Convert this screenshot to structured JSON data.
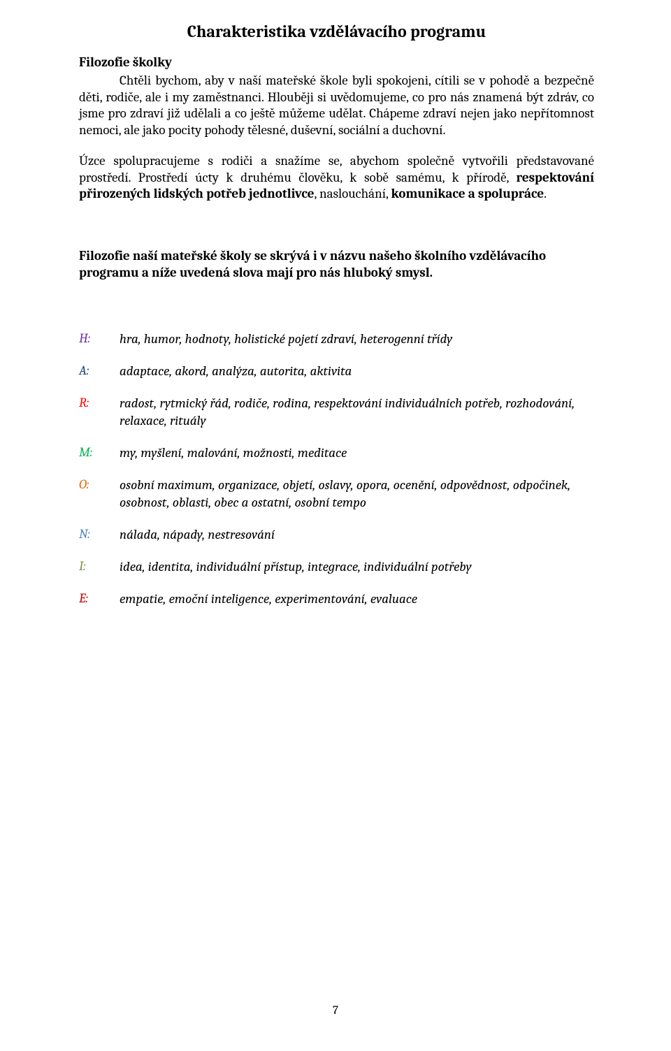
{
  "title": "Charakteristika vzdělávacího programu",
  "subhead": "Filozofie školky",
  "para1_a": "Chtěli bychom, aby v naší mateřské škole byli spokojeni, cítili se v pohodě a bezpečně děti, rodiče, ale i my zaměstnanci. Hlouběji si uvědomujeme, co pro nás znamená být zdráv, co jsme pro zdraví již udělali a co ještě můžeme udělat. Chápeme zdraví nejen jako nepřítomnost nemoci, ale jako pocity pohody tělesné, duševní, sociální a duchovní.",
  "para2_a": "Úzce spolupracujeme s rodiči a snažíme se, abychom společně vytvořili představované prostředí. Prostředí úcty k druhému člověku, k sobě samému, k přírodě, ",
  "para2_b": "respektování přirozených lidských potřeb jednotlivce",
  "para2_c": ", naslouchání, ",
  "para2_d": "komunikace a spolupráce",
  "para2_e": ".",
  "philosophy_heading": "Filozofie naší mateřské školy se skrývá i v názvu našeho školního vzdělávacího programu a níže uvedená slova mají pro nás hluboký smysl.",
  "colors": {
    "text": "#000000",
    "bg": "#ffffff",
    "H": "#7030a0",
    "A": "#1f497d",
    "R": "#ff0000",
    "M": "#00b050",
    "O": "#e36c09",
    "N": "#4f81bd",
    "I": "#76923c",
    "E": "#c00000"
  },
  "letters": {
    "H": {
      "key": "H:",
      "val": "hra, humor, hodnoty, holistické pojetí zdraví, heterogenní třídy"
    },
    "A": {
      "key": "A:",
      "val": "adaptace, akord, analýza, autorita, aktivita"
    },
    "R": {
      "key": "R:",
      "val": "radost, rytmický řád, rodiče, rodina, respektování individuálních potřeb, rozhodování, relaxace, rituály"
    },
    "M": {
      "key": "M:",
      "val": "my, myšlení, malování, možnosti, meditace"
    },
    "O": {
      "key": "O:",
      "val": "osobní maximum, organizace, objetí, oslavy, opora, ocenění, odpovědnost, odpočinek, osobnost, oblasti, obec a ostatní, osobní tempo"
    },
    "N": {
      "key": "N:",
      "val": "nálada, nápady, nestresování"
    },
    "I": {
      "key": "I:",
      "val": "idea, identita, individuální přístup, integrace, individuální potřeby"
    },
    "E": {
      "key": "E:",
      "val": "empatie, emoční inteligence, experimentování, evaluace"
    }
  },
  "page_number": "7"
}
